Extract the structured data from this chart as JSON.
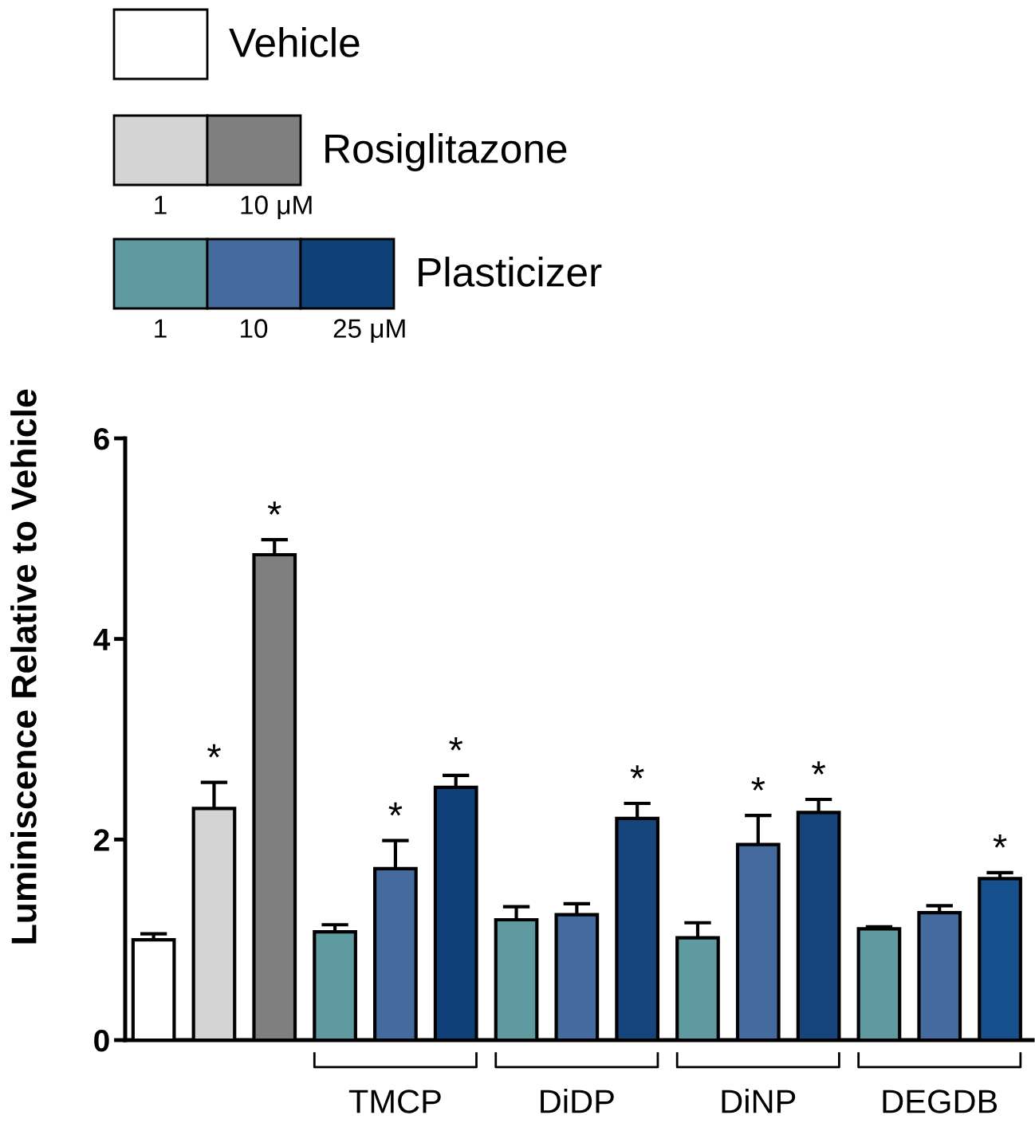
{
  "chart_data": {
    "type": "bar",
    "ylabel": "Luminiscence Relative to Vehicle",
    "categories": [
      null,
      null,
      null,
      null,
      "TMCP",
      null,
      null,
      "DiDP",
      null,
      null,
      "DiNP",
      null,
      null,
      "DEGDB",
      null
    ],
    "series": [
      {
        "name": "Vehicle",
        "colors": [
          "#ffffff",
          null,
          null,
          null,
          null,
          null,
          null,
          null,
          null,
          null,
          null,
          null,
          null,
          null,
          null
        ],
        "values": [
          1.0,
          null,
          null,
          null,
          null,
          null,
          null,
          null,
          null,
          null,
          null,
          null,
          null,
          null,
          null
        ],
        "errors": [
          0.06,
          null,
          null,
          null,
          null,
          null,
          null,
          null,
          null,
          null,
          null,
          null,
          null,
          null,
          null
        ],
        "value_labels": [
          null,
          null,
          null,
          null,
          null,
          null,
          null,
          null,
          null,
          null,
          null,
          null,
          null,
          null,
          null
        ]
      },
      {
        "name": "Rosiglitazone",
        "colors": [
          null,
          "#d4d4d4",
          "#7f7f7f",
          null,
          null,
          null,
          null,
          null,
          null,
          null,
          null,
          null,
          null,
          null,
          null
        ],
        "values": [
          null,
          2.31,
          4.84,
          null,
          null,
          null,
          null,
          null,
          null,
          null,
          null,
          null,
          null,
          null,
          null
        ],
        "errors": [
          null,
          0.26,
          0.15,
          null,
          null,
          null,
          null,
          null,
          null,
          null,
          null,
          null,
          null,
          null,
          null
        ],
        "value_labels": [
          null,
          "*",
          "*",
          null,
          null,
          null,
          null,
          null,
          null,
          null,
          null,
          null,
          null,
          null,
          null
        ]
      },
      {
        "name": "Plasticizer",
        "colors": [
          null,
          null,
          null,
          "#5f9aa0",
          "#456b9e",
          "#0f4178",
          "#5f9aa0",
          "#456b9e",
          "#15457a",
          "#5f9aa0",
          "#456b9e",
          "#15457a",
          "#5f9aa0",
          "#456b9e",
          "#15508c"
        ],
        "values": [
          null,
          null,
          null,
          1.08,
          1.71,
          2.52,
          1.2,
          1.25,
          2.21,
          1.02,
          1.95,
          2.27,
          1.11,
          1.27,
          1.61
        ],
        "errors": [
          null,
          null,
          null,
          0.07,
          0.28,
          0.12,
          0.13,
          0.11,
          0.15,
          0.15,
          0.29,
          0.13,
          0.02,
          0.07,
          0.06
        ],
        "value_labels": [
          null,
          null,
          null,
          null,
          "*",
          "*",
          null,
          null,
          "*",
          null,
          "*",
          "*",
          null,
          null,
          "*"
        ]
      }
    ],
    "ylim": [
      0,
      6
    ],
    "yticks": [
      0,
      2,
      4,
      6
    ],
    "grid": false,
    "legend": "top left",
    "annotations": [
      "1",
      "10 μM",
      "1",
      "10",
      "25 μM"
    ]
  }
}
